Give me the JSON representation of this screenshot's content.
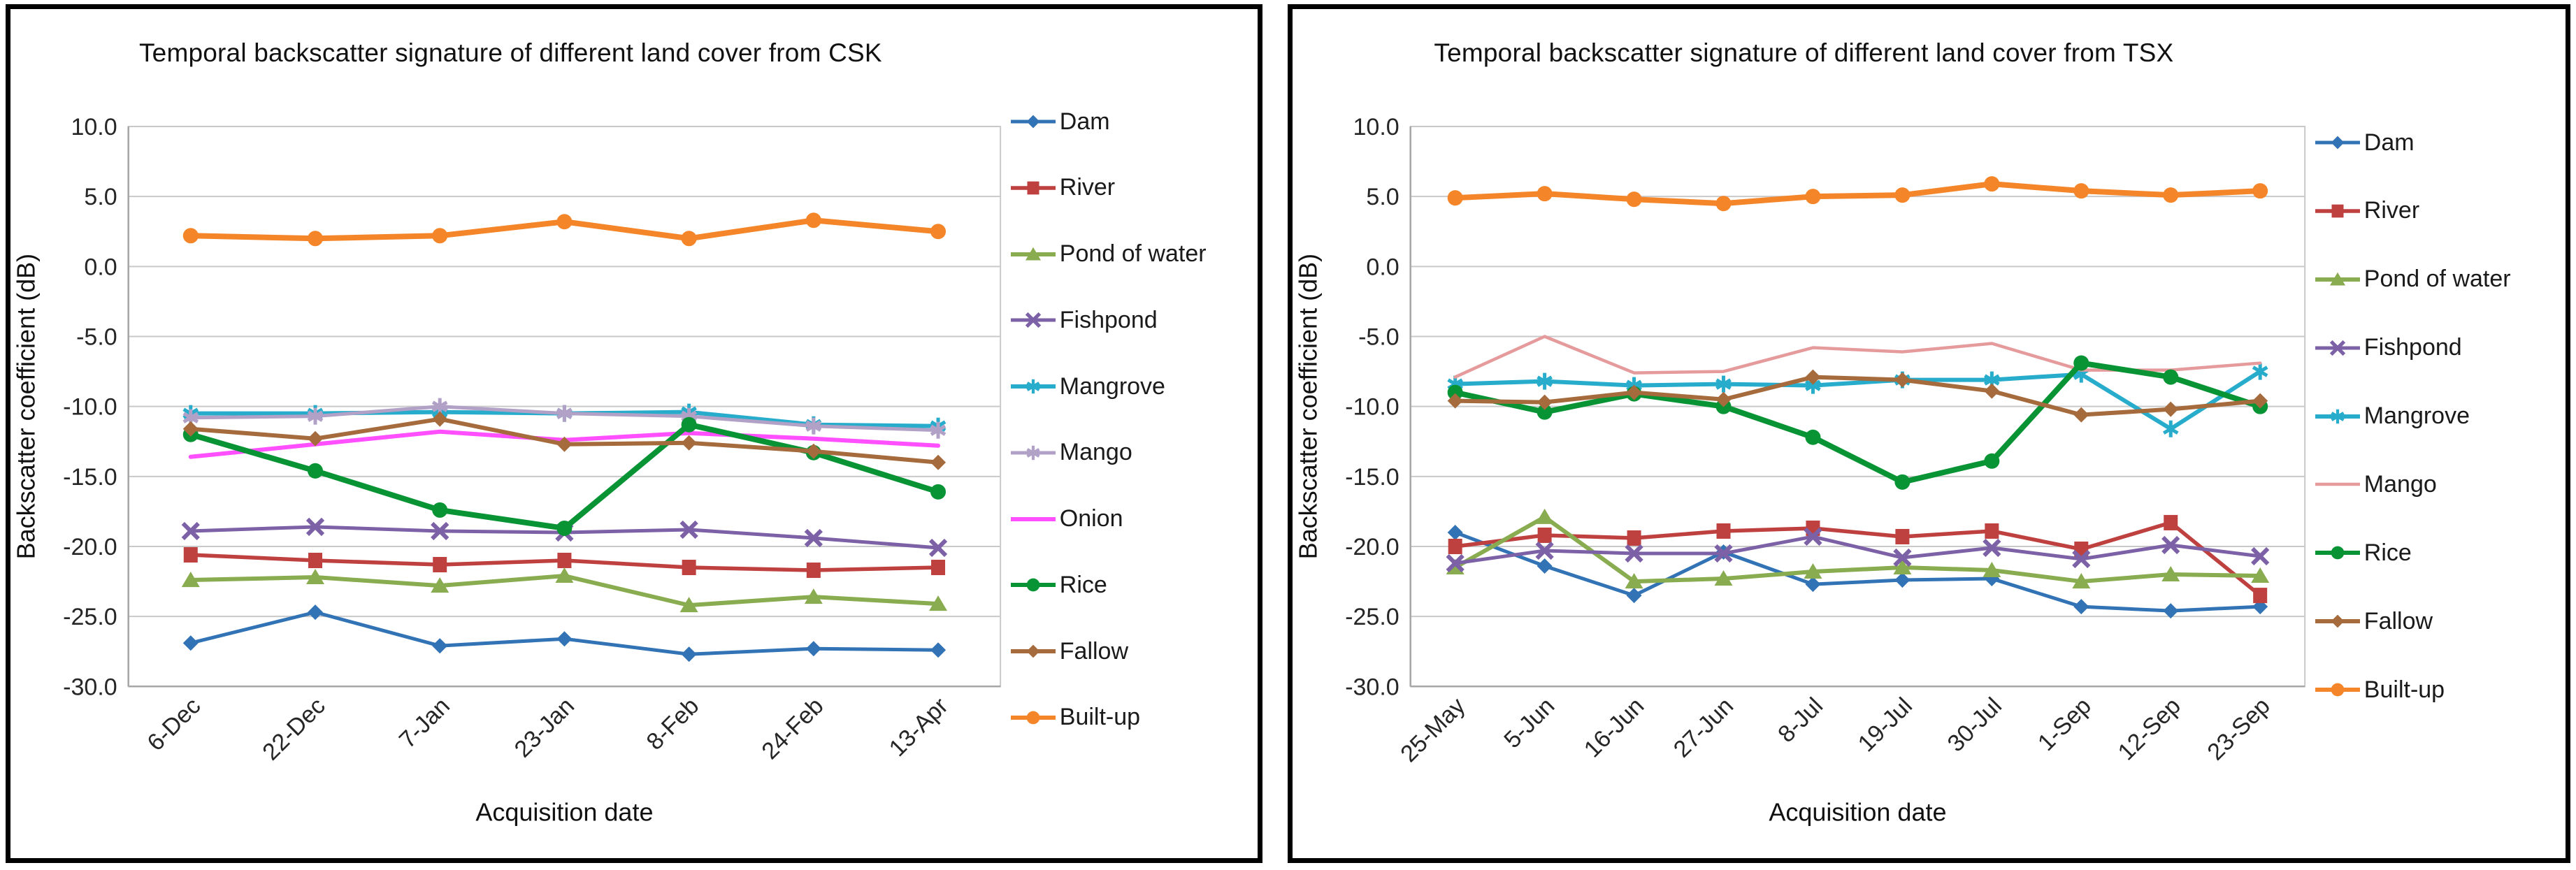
{
  "figure": {
    "y_axis_title": "Backscatter coefficient (dB)",
    "x_axis_title": "Acquisition date"
  },
  "chart_data": [
    {
      "type": "line",
      "title": "Temporal backscatter signature of different land cover from CSK",
      "xlabel": "Acquisition date",
      "ylabel": "Backscatter coefficient (dB)",
      "ylim": [
        -30,
        10
      ],
      "grid": true,
      "legend_position": "right",
      "y_ticks": [
        "10.0",
        "5.0",
        "0.0",
        "-5.0",
        "-10.0",
        "-15.0",
        "-20.0",
        "-25.0",
        "-30.0"
      ],
      "categories": [
        "6-Dec",
        "22-Dec",
        "7-Jan",
        "23-Jan",
        "8-Feb",
        "24-Feb",
        "13-Apr"
      ],
      "series": [
        {
          "name": "Dam",
          "color": "#3273B5",
          "marker": "diamond",
          "width": 5,
          "values": [
            -26.9,
            -24.7,
            -27.1,
            -26.6,
            -27.7,
            -27.3,
            -27.4
          ]
        },
        {
          "name": "River",
          "color": "#BE4140",
          "marker": "square",
          "width": 5.5,
          "values": [
            -20.6,
            -21.0,
            -21.3,
            -21.0,
            -21.5,
            -21.7,
            -21.5
          ]
        },
        {
          "name": "Pond of water",
          "color": "#89AC50",
          "marker": "triangle",
          "width": 6,
          "values": [
            -22.4,
            -22.2,
            -22.8,
            -22.1,
            -24.2,
            -23.6,
            -24.1
          ]
        },
        {
          "name": "Fishpond",
          "color": "#7C61A6",
          "marker": "x",
          "width": 5,
          "values": [
            -18.9,
            -18.6,
            -18.9,
            -19.0,
            -18.8,
            -19.4,
            -20.1
          ]
        },
        {
          "name": "Mangrove",
          "color": "#27ACCB",
          "marker": "star",
          "width": 6,
          "values": [
            -10.5,
            -10.5,
            -10.4,
            -10.5,
            -10.4,
            -11.3,
            -11.4
          ]
        },
        {
          "name": "Mango",
          "color": "#B2A1C7",
          "marker": "star",
          "width": 5,
          "values": [
            -10.8,
            -10.7,
            -10.0,
            -10.5,
            -10.7,
            -11.4,
            -11.7
          ]
        },
        {
          "name": "Onion",
          "color": "#FF4FFF",
          "marker": "none",
          "width": 6,
          "values": [
            -13.6,
            -12.7,
            -11.8,
            -12.4,
            -11.9,
            -12.3,
            -12.8
          ]
        },
        {
          "name": "Rice",
          "color": "#089434",
          "marker": "circle",
          "width": 8,
          "values": [
            -12.0,
            -14.6,
            -17.4,
            -18.7,
            -11.3,
            -13.3,
            -16.1
          ]
        },
        {
          "name": "Fallow",
          "color": "#A56B3D",
          "marker": "diamond",
          "width": 6,
          "values": [
            -11.6,
            -12.3,
            -10.9,
            -12.7,
            -12.6,
            -13.2,
            -14.0
          ]
        },
        {
          "name": "Built-up",
          "color": "#F58529",
          "marker": "circle",
          "width": 8,
          "values": [
            2.2,
            2.0,
            2.2,
            3.2,
            2.0,
            3.3,
            2.5
          ]
        }
      ]
    },
    {
      "type": "line",
      "title": "Temporal backscatter signature of different land cover from TSX",
      "xlabel": "Acquisition date",
      "ylabel": "Backscatter coefficient (dB)",
      "ylim": [
        -30,
        10
      ],
      "grid": true,
      "legend_position": "right",
      "y_ticks": [
        "10.0",
        "5.0",
        "0.0",
        "-5.0",
        "-10.0",
        "-15.0",
        "-20.0",
        "-25.0",
        "-30.0"
      ],
      "categories": [
        "25-May",
        "5-Jun",
        "16-Jun",
        "27-Jun",
        "8-Jul",
        "19-Jul",
        "30-Jul",
        "1-Sep",
        "12-Sep",
        "23-Sep"
      ],
      "series": [
        {
          "name": "Dam",
          "color": "#3273B5",
          "marker": "diamond",
          "width": 5,
          "values": [
            -19.0,
            -21.4,
            -23.5,
            -20.4,
            -22.7,
            -22.4,
            -22.3,
            -24.3,
            -24.6,
            -24.3
          ]
        },
        {
          "name": "River",
          "color": "#BE4140",
          "marker": "square",
          "width": 5.5,
          "values": [
            -20.0,
            -19.2,
            -19.4,
            -18.9,
            -18.7,
            -19.3,
            -18.9,
            -20.2,
            -18.3,
            -23.5
          ]
        },
        {
          "name": "Pond of water",
          "color": "#89AC50",
          "marker": "triangle",
          "width": 6,
          "values": [
            -21.5,
            -17.9,
            -22.5,
            -22.3,
            -21.8,
            -21.5,
            -21.7,
            -22.5,
            -22.0,
            -22.1
          ]
        },
        {
          "name": "Fishpond",
          "color": "#7C61A6",
          "marker": "x",
          "width": 5,
          "values": [
            -21.2,
            -20.3,
            -20.5,
            -20.5,
            -19.3,
            -20.8,
            -20.1,
            -20.9,
            -19.9,
            -20.7
          ]
        },
        {
          "name": "Mangrove",
          "color": "#27ACCB",
          "marker": "star",
          "width": 6,
          "values": [
            -8.4,
            -8.2,
            -8.5,
            -8.4,
            -8.5,
            -8.1,
            -8.1,
            -7.7,
            -11.6,
            -7.5
          ]
        },
        {
          "name": "Mango",
          "color": "#E59A9C",
          "marker": "none",
          "width": 4.5,
          "values": [
            -7.9,
            -5.0,
            -7.6,
            -7.5,
            -5.8,
            -6.1,
            -5.5,
            -7.4,
            -7.4,
            -6.9
          ]
        },
        {
          "name": "Rice",
          "color": "#089434",
          "marker": "circle",
          "width": 8,
          "values": [
            -9.0,
            -10.4,
            -9.1,
            -10.0,
            -12.2,
            -15.4,
            -13.9,
            -6.9,
            -7.9,
            -10.0
          ]
        },
        {
          "name": "Fallow",
          "color": "#A56B3D",
          "marker": "diamond",
          "width": 6,
          "values": [
            -9.6,
            -9.7,
            -9.0,
            -9.5,
            -7.9,
            -8.1,
            -8.9,
            -10.6,
            -10.2,
            -9.6
          ]
        },
        {
          "name": "Built-up",
          "color": "#F58529",
          "marker": "circle",
          "width": 8,
          "values": [
            4.9,
            5.2,
            4.8,
            4.5,
            5.0,
            5.1,
            5.9,
            5.4,
            5.1,
            5.4
          ]
        }
      ]
    }
  ]
}
